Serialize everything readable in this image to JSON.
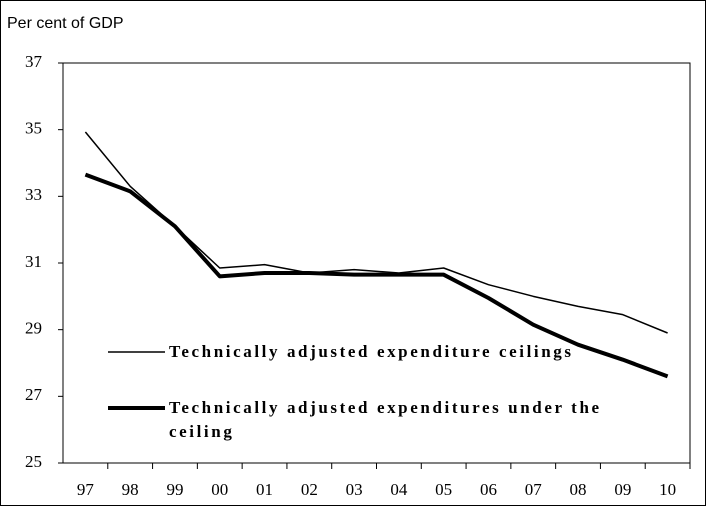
{
  "chart_data": {
    "type": "line",
    "y_label": "Per cent of GDP",
    "categories": [
      "97",
      "98",
      "99",
      "00",
      "01",
      "02",
      "03",
      "04",
      "05",
      "06",
      "07",
      "08",
      "09",
      "10"
    ],
    "series": [
      {
        "name": "Technically adjusted expenditure ceilings",
        "color": "#000000",
        "values": [
          34.93,
          33.3,
          32.1,
          30.85,
          30.95,
          30.7,
          30.8,
          30.7,
          30.85,
          30.35,
          30.0,
          29.7,
          29.45,
          28.9
        ]
      },
      {
        "name": "Technically adjusted expenditures under the ceiling",
        "color": "#000000",
        "values": [
          33.65,
          33.15,
          32.1,
          30.6,
          30.7,
          30.7,
          30.65,
          30.65,
          30.65,
          29.95,
          29.15,
          28.55,
          28.1,
          27.6
        ]
      }
    ],
    "ylim": [
      25,
      37
    ],
    "yticks": [
      25,
      27,
      29,
      31,
      33,
      35,
      37
    ],
    "grid": false
  }
}
